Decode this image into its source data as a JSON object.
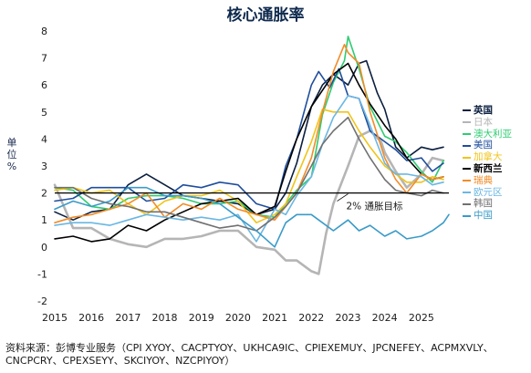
{
  "chart_data": {
    "type": "line",
    "title": "核心通胀率",
    "ylabel": "单位 %",
    "xlabel": "",
    "ylim": [
      -2,
      8
    ],
    "xlim": [
      2015,
      2025.75
    ],
    "y_ticks": [
      "-2",
      "-1",
      "0",
      "1",
      "2",
      "3",
      "4",
      "5",
      "6",
      "7",
      "8"
    ],
    "x_ticks": [
      "2015",
      "2016",
      "2017",
      "2018",
      "2019",
      "2020",
      "2021",
      "2022",
      "2023",
      "2024",
      "2025"
    ],
    "grid": false,
    "legend_position": "right",
    "target": {
      "y": 2,
      "label": "2% 通胀目标"
    },
    "series": [
      {
        "name": "英国",
        "color": "#0b1f3f",
        "x": [
          2015,
          2015.5,
          2016,
          2016.5,
          2017,
          2017.5,
          2018,
          2018.5,
          2019,
          2019.5,
          2020,
          2020.5,
          2021,
          2021.3,
          2021.6,
          2022,
          2022.3,
          2022.6,
          2023,
          2023.3,
          2023.5,
          2023.8,
          2024,
          2024.3,
          2024.6,
          2025,
          2025.3,
          2025.6
        ],
        "y": [
          1.3,
          1.0,
          1.3,
          1.4,
          2.3,
          2.7,
          2.3,
          1.9,
          1.8,
          1.7,
          1.6,
          1.2,
          1.4,
          2.0,
          3.1,
          5.2,
          6.0,
          6.4,
          6.0,
          6.8,
          6.9,
          5.7,
          5.1,
          3.7,
          3.3,
          3.7,
          3.6,
          3.7
        ]
      },
      {
        "name": "日本",
        "color": "#b5b5b5",
        "x": [
          2015,
          2015.5,
          2016,
          2016.5,
          2017,
          2017.5,
          2018,
          2018.5,
          2019,
          2019.5,
          2020,
          2020.5,
          2021,
          2021.3,
          2021.6,
          2022,
          2022.2,
          2022.4,
          2022.6,
          2023,
          2023.3,
          2023.6,
          2023.9,
          2024,
          2024.3,
          2024.6,
          2025,
          2025.3,
          2025.6
        ],
        "y": [
          2.3,
          0.7,
          0.7,
          0.3,
          0.1,
          0.0,
          0.3,
          0.3,
          0.4,
          0.6,
          0.6,
          0.0,
          -0.1,
          -0.5,
          -0.5,
          -0.9,
          -1.0,
          0.5,
          1.6,
          3.0,
          4.1,
          4.3,
          3.9,
          3.5,
          2.8,
          2.2,
          2.7,
          3.3,
          3.2
        ]
      },
      {
        "name": "澳大利亚",
        "color": "#2ecc71",
        "x": [
          2015,
          2015.5,
          2016,
          2016.5,
          2017,
          2017.5,
          2018,
          2018.5,
          2019,
          2019.5,
          2020,
          2020.5,
          2021,
          2021.3,
          2021.6,
          2022,
          2022.3,
          2022.6,
          2022.9,
          2023,
          2023.3,
          2023.6,
          2024,
          2024.3,
          2024.6,
          2025,
          2025.3,
          2025.6
        ],
        "y": [
          2.2,
          2.1,
          1.5,
          1.4,
          1.8,
          1.9,
          1.9,
          1.8,
          1.6,
          1.6,
          1.7,
          1.2,
          1.1,
          1.6,
          2.1,
          2.6,
          4.9,
          6.1,
          6.9,
          7.8,
          6.6,
          5.2,
          4.1,
          3.9,
          3.5,
          2.8,
          2.4,
          3.2
        ]
      },
      {
        "name": "美国",
        "color": "#1f4e9c",
        "x": [
          2015,
          2015.5,
          2016,
          2016.5,
          2017,
          2017.5,
          2018,
          2018.5,
          2019,
          2019.5,
          2020,
          2020.5,
          2021,
          2021.3,
          2021.6,
          2022,
          2022.2,
          2022.5,
          2022.75,
          2023,
          2023.3,
          2023.6,
          2024,
          2024.3,
          2024.6,
          2025,
          2025.3,
          2025.6
        ],
        "y": [
          1.7,
          1.8,
          2.2,
          2.2,
          2.2,
          1.7,
          1.8,
          2.3,
          2.2,
          2.4,
          2.3,
          1.6,
          1.4,
          3.0,
          4.0,
          6.0,
          6.5,
          5.9,
          6.6,
          5.6,
          5.5,
          4.3,
          3.9,
          3.6,
          3.2,
          3.3,
          2.8,
          3.1
        ]
      },
      {
        "name": "加拿大",
        "color": "#f0c419",
        "x": [
          2015,
          2015.5,
          2016,
          2016.5,
          2017,
          2017.5,
          2018,
          2018.5,
          2019,
          2019.5,
          2020,
          2020.5,
          2021,
          2021.3,
          2021.6,
          2022,
          2022.3,
          2022.6,
          2023,
          2023.3,
          2023.6,
          2024,
          2024.3,
          2024.6,
          2025,
          2025.3,
          2025.6
        ],
        "y": [
          2.1,
          2.2,
          2.0,
          2.1,
          1.6,
          1.2,
          1.7,
          1.9,
          1.9,
          2.1,
          1.7,
          0.9,
          1.2,
          1.6,
          2.6,
          3.9,
          5.1,
          5.0,
          5.0,
          4.3,
          3.7,
          3.0,
          2.7,
          2.4,
          2.4,
          2.6,
          2.5
        ]
      },
      {
        "name": "新西兰",
        "color": "#000000",
        "x": [
          2015,
          2015.5,
          2016,
          2016.5,
          2017,
          2017.5,
          2018,
          2018.5,
          2019,
          2019.5,
          2020,
          2020.5,
          2021,
          2021.3,
          2021.6,
          2022,
          2022.3,
          2022.6,
          2023,
          2023.3,
          2023.6,
          2024,
          2024.3,
          2024.6,
          2025,
          2025.3,
          2025.6
        ],
        "y": [
          0.3,
          0.4,
          0.2,
          0.3,
          0.8,
          0.6,
          1.0,
          1.3,
          1.6,
          1.7,
          1.8,
          1.2,
          1.5,
          2.8,
          4.0,
          5.2,
          5.8,
          6.4,
          6.8,
          6.0,
          5.3,
          4.5,
          4.0,
          3.3,
          2.7,
          2.5,
          2.6
        ]
      },
      {
        "name": "瑞典",
        "color": "#f28c28",
        "x": [
          2015,
          2015.5,
          2016,
          2016.5,
          2017,
          2017.5,
          2018,
          2018.5,
          2019,
          2019.5,
          2020,
          2020.5,
          2021,
          2021.3,
          2021.6,
          2022,
          2022.3,
          2022.6,
          2022.9,
          2023,
          2023.3,
          2023.6,
          2024,
          2024.3,
          2024.6,
          2025,
          2025.3,
          2025.6
        ],
        "y": [
          0.9,
          1.1,
          1.2,
          1.4,
          1.6,
          2.0,
          1.1,
          1.6,
          1.4,
          1.8,
          1.4,
          1.2,
          1.0,
          1.5,
          2.0,
          3.3,
          5.0,
          6.5,
          7.5,
          7.2,
          6.8,
          5.0,
          3.3,
          2.5,
          2.0,
          2.7,
          2.5,
          2.6
        ]
      },
      {
        "name": "欧元区",
        "color": "#6bb7e3",
        "x": [
          2015,
          2015.5,
          2016,
          2016.5,
          2017,
          2017.5,
          2018,
          2018.5,
          2019,
          2019.5,
          2020,
          2020.5,
          2021,
          2021.3,
          2021.6,
          2022,
          2022.3,
          2022.6,
          2023,
          2023.3,
          2023.6,
          2024,
          2024.3,
          2024.6,
          2025,
          2025.3,
          2025.6
        ],
        "y": [
          0.8,
          0.9,
          0.9,
          0.8,
          1.0,
          1.2,
          1.1,
          1.0,
          1.1,
          1.0,
          1.2,
          0.2,
          1.4,
          1.2,
          1.9,
          2.6,
          3.8,
          4.8,
          5.6,
          5.5,
          4.5,
          3.1,
          2.7,
          2.7,
          2.6,
          2.3,
          2.4
        ]
      },
      {
        "name": "韩国",
        "color": "#707070",
        "x": [
          2015,
          2015.5,
          2016,
          2016.5,
          2017,
          2017.5,
          2018,
          2018.5,
          2019,
          2019.5,
          2020,
          2020.5,
          2021,
          2021.3,
          2021.6,
          2022,
          2022.3,
          2022.6,
          2023,
          2023.3,
          2023.6,
          2024,
          2024.3,
          2024.6,
          2025,
          2025.3,
          2025.6
        ],
        "y": [
          2.2,
          2.2,
          1.8,
          1.6,
          1.5,
          1.3,
          1.3,
          1.1,
          0.9,
          0.7,
          0.8,
          0.6,
          1.1,
          1.5,
          2.0,
          3.0,
          3.8,
          4.3,
          4.8,
          4.0,
          3.3,
          2.5,
          2.1,
          2.0,
          1.9,
          2.1,
          2.0
        ]
      },
      {
        "name": "中国",
        "color": "#3a9bc8",
        "x": [
          2015,
          2015.5,
          2016,
          2016.5,
          2017,
          2017.5,
          2018,
          2018.5,
          2019,
          2019.5,
          2020,
          2020.5,
          2021,
          2021.3,
          2021.6,
          2022,
          2022.3,
          2022.6,
          2023,
          2023.3,
          2023.6,
          2024,
          2024.3,
          2024.6,
          2025,
          2025.3,
          2025.6,
          2025.75
        ],
        "y": [
          1.4,
          1.7,
          1.5,
          1.7,
          2.2,
          2.2,
          1.9,
          1.9,
          1.8,
          1.6,
          1.1,
          0.6,
          0.0,
          0.9,
          1.2,
          1.2,
          0.9,
          0.6,
          1.0,
          0.6,
          0.8,
          0.4,
          0.6,
          0.3,
          0.4,
          0.6,
          0.9,
          1.2
        ]
      }
    ],
    "source": "资料来源：彭博专业服务（CPI XYOY、CACPTYOY、UKHCA9IC、CPIEXEMUY、JPCNEFEY、ACPMXVLY、CNCPCRY、CPEXSEYY、SKCIYOY、NZCPIYOY）"
  }
}
